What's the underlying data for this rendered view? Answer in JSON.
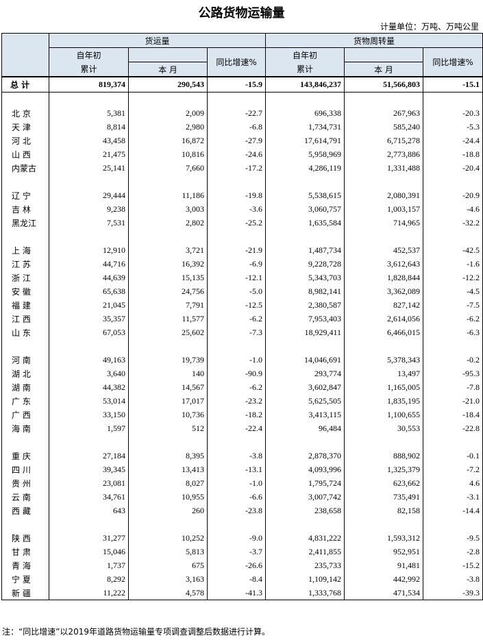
{
  "header": {
    "title": "公路货物运输量",
    "unit": "计量单位：万吨、万吨公里"
  },
  "table": {
    "columns": [
      {
        "group": "货运量",
        "cumulative_top": "自年初",
        "cumulative_bottom": "累计",
        "month": "本 月",
        "growth": "同比增速%"
      },
      {
        "group": "货物周转量",
        "cumulative_top": "自年初",
        "cumulative_bottom": "累计",
        "month": "本 月",
        "growth": "同比增速%"
      }
    ],
    "total": [
      "总 计",
      "819,374",
      "290,543",
      "-15.9",
      "143,846,237",
      "51,566,803",
      "-15.1"
    ],
    "groups": [
      [
        [
          "北 京",
          "5,381",
          "2,009",
          "-22.7",
          "696,338",
          "267,963",
          "-20.3"
        ],
        [
          "天 津",
          "8,814",
          "2,980",
          "-6.8",
          "1,734,731",
          "585,240",
          "-5.3"
        ],
        [
          "河 北",
          "43,458",
          "16,872",
          "-27.9",
          "17,614,791",
          "6,715,278",
          "-24.4"
        ],
        [
          "山 西",
          "21,475",
          "10,816",
          "-24.6",
          "5,958,969",
          "2,773,886",
          "-18.8"
        ],
        [
          "内蒙古",
          "25,141",
          "7,660",
          "-17.2",
          "4,286,119",
          "1,331,488",
          "-20.4"
        ]
      ],
      [
        [
          "辽 宁",
          "29,444",
          "11,186",
          "-19.8",
          "5,538,615",
          "2,080,391",
          "-20.9"
        ],
        [
          "吉 林",
          "9,238",
          "3,003",
          "-3.6",
          "3,060,757",
          "1,003,157",
          "-4.6"
        ],
        [
          "黑龙江",
          "7,531",
          "2,802",
          "-25.2",
          "1,635,584",
          "714,965",
          "-32.2"
        ]
      ],
      [
        [
          "上 海",
          "12,910",
          "3,721",
          "-21.9",
          "1,487,734",
          "452,537",
          "-42.5"
        ],
        [
          "江 苏",
          "44,716",
          "16,392",
          "-6.9",
          "9,228,728",
          "3,612,643",
          "-1.6"
        ],
        [
          "浙 江",
          "44,639",
          "15,135",
          "-12.1",
          "5,343,703",
          "1,828,844",
          "-12.2"
        ],
        [
          "安 徽",
          "65,638",
          "24,756",
          "-5.0",
          "8,982,141",
          "3,362,089",
          "-4.5"
        ],
        [
          "福 建",
          "21,045",
          "7,791",
          "-12.5",
          "2,380,587",
          "827,142",
          "-7.5"
        ],
        [
          "江 西",
          "35,357",
          "11,577",
          "-6.2",
          "7,953,403",
          "2,614,056",
          "-6.2"
        ],
        [
          "山 东",
          "67,053",
          "25,602",
          "-7.3",
          "18,929,411",
          "6,466,015",
          "-6.3"
        ]
      ],
      [
        [
          "河 南",
          "49,163",
          "19,739",
          "-1.0",
          "14,046,691",
          "5,378,343",
          "-0.2"
        ],
        [
          "湖 北",
          "3,640",
          "140",
          "-90.9",
          "293,774",
          "13,497",
          "-95.3"
        ],
        [
          "湖 南",
          "44,382",
          "14,567",
          "-6.2",
          "3,602,847",
          "1,165,005",
          "-7.8"
        ],
        [
          "广 东",
          "53,014",
          "17,017",
          "-23.2",
          "5,625,505",
          "1,835,195",
          "-21.0"
        ],
        [
          "广 西",
          "33,150",
          "10,736",
          "-18.2",
          "3,413,115",
          "1,100,655",
          "-18.4"
        ],
        [
          "海 南",
          "1,597",
          "512",
          "-22.4",
          "96,484",
          "30,553",
          "-22.8"
        ]
      ],
      [
        [
          "重 庆",
          "27,184",
          "8,395",
          "-3.8",
          "2,878,370",
          "888,902",
          "-0.1"
        ],
        [
          "四 川",
          "39,345",
          "13,413",
          "-13.1",
          "4,093,996",
          "1,325,379",
          "-7.2"
        ],
        [
          "贵 州",
          "23,081",
          "8,027",
          "-1.0",
          "1,795,724",
          "623,662",
          "4.6"
        ],
        [
          "云 南",
          "34,761",
          "10,955",
          "-6.6",
          "3,007,742",
          "735,491",
          "-3.1"
        ],
        [
          "西 藏",
          "643",
          "260",
          "-23.8",
          "238,658",
          "82,158",
          "-14.4"
        ]
      ],
      [
        [
          "陕 西",
          "31,277",
          "10,252",
          "-9.0",
          "4,831,222",
          "1,593,312",
          "-9.5"
        ],
        [
          "甘 肃",
          "15,046",
          "5,813",
          "-3.7",
          "2,411,855",
          "952,951",
          "-2.8"
        ],
        [
          "青 海",
          "1,737",
          "675",
          "-26.6",
          "235,733",
          "91,481",
          "-15.2"
        ],
        [
          "宁 夏",
          "8,292",
          "3,163",
          "-8.4",
          "1,109,142",
          "442,992",
          "-3.8"
        ],
        [
          "新 疆",
          "11,222",
          "4,578",
          "-41.3",
          "1,333,768",
          "471,534",
          "-39.3"
        ]
      ]
    ]
  },
  "note": "注：“同比增速”以2019年道路货物运输量专项调查调整后数据进行计算。"
}
